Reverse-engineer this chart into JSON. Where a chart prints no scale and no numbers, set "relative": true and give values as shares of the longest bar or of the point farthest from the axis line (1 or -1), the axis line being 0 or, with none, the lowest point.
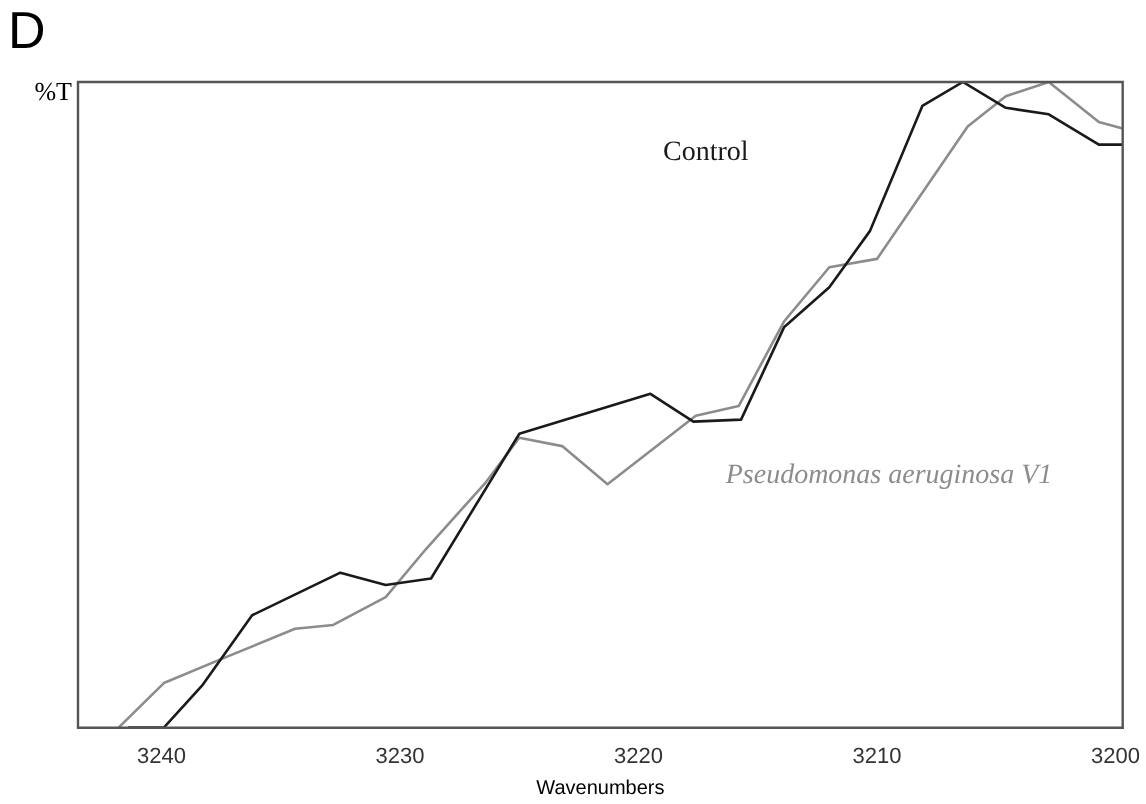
{
  "chart_data": {
    "type": "line",
    "title": "D",
    "xlabel": "Wavenumbers",
    "ylabel": "%T",
    "relative": true,
    "xlim": [
      3243.5,
      3199.7
    ],
    "xticks": [
      3240,
      3230,
      3220,
      3210,
      3200
    ],
    "grid": false,
    "legend": false,
    "marker": "none",
    "line_style": "solid",
    "series": [
      {
        "name": "Control",
        "color": "#1a1a1a",
        "x": [
          3241.4,
          3239.9,
          3238.3,
          3236.2,
          3232.5,
          3230.6,
          3228.7,
          3225.0,
          3219.5,
          3217.7,
          3215.7,
          3213.9,
          3212.0,
          3210.3,
          3208.1,
          3206.4,
          3204.6,
          3202.8,
          3200.7,
          3199.7
        ],
        "values": [
          0,
          0,
          0.065,
          0.174,
          0.24,
          0.221,
          0.231,
          0.455,
          0.517,
          0.474,
          0.477,
          0.62,
          0.682,
          0.769,
          0.963,
          1.0,
          0.96,
          0.95,
          0.903,
          0.903
        ]
      },
      {
        "name": "Pseudomonas aeruginosa V1",
        "color": "#8c8c8c",
        "x": [
          3241.8,
          3239.9,
          3237.5,
          3234.4,
          3232.8,
          3230.6,
          3228.9,
          3226.4,
          3225.0,
          3223.2,
          3221.3,
          3217.6,
          3215.8,
          3213.9,
          3212.0,
          3210.0,
          3206.2,
          3204.6,
          3202.8,
          3200.7,
          3199.7
        ],
        "values": [
          0,
          0.069,
          0.106,
          0.153,
          0.159,
          0.202,
          0.277,
          0.38,
          0.449,
          0.436,
          0.377,
          0.483,
          0.498,
          0.629,
          0.713,
          0.726,
          0.931,
          0.978,
          1.0,
          0.938,
          0.928
        ]
      }
    ]
  }
}
